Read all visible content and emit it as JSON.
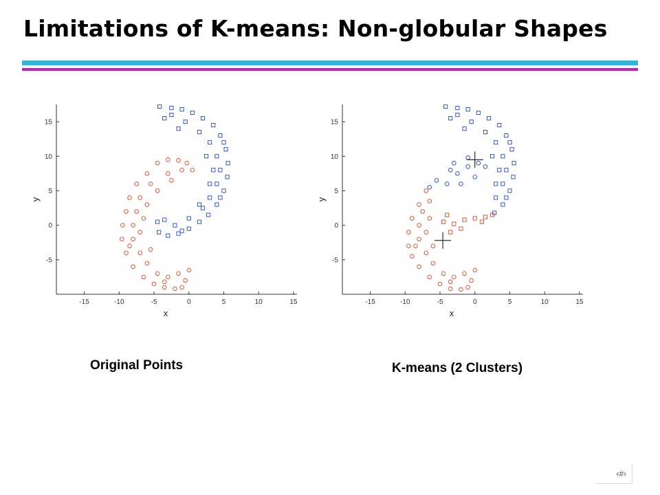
{
  "slide": {
    "title": "Limitations of K-means: Non-globular Shapes",
    "slide_number": "‹#›",
    "colors": {
      "rule_top": "#29b8e0",
      "rule_bottom": "#c81ec8",
      "cluster_red": "#e8401c",
      "cluster_blue": "#1a44d8"
    }
  },
  "captions": {
    "left": "Original Points",
    "right": "K-means (2 Clusters)"
  },
  "chart_data": [
    {
      "type": "scatter",
      "title": "",
      "xlabel": "x",
      "ylabel": "y",
      "xlim": [
        -19,
        15.5
      ],
      "ylim": [
        -10,
        17.5
      ],
      "xticks": [
        -15,
        -10,
        -5,
        0,
        5,
        10,
        15
      ],
      "yticks": [
        -5,
        0,
        5,
        10,
        15
      ],
      "grid": false,
      "series": [
        {
          "marker": "circle",
          "color": "#e8401c",
          "points": [
            [
              -3,
              9.5
            ],
            [
              -1.5,
              9.4
            ],
            [
              -0.3,
              9
            ],
            [
              0.5,
              8
            ],
            [
              -4.5,
              9
            ],
            [
              -6,
              7.5
            ],
            [
              -7.5,
              6
            ],
            [
              -8.5,
              4
            ],
            [
              -9,
              2
            ],
            [
              -9.5,
              0
            ],
            [
              -9.6,
              -2
            ],
            [
              -9,
              -4
            ],
            [
              -8,
              -6
            ],
            [
              -6.5,
              -7.5
            ],
            [
              -5,
              -8.5
            ],
            [
              -3.5,
              -9
            ],
            [
              -2,
              -9.2
            ],
            [
              -0.5,
              -8
            ],
            [
              0,
              -6.5
            ],
            [
              -3,
              7.5
            ],
            [
              -1,
              8
            ],
            [
              -5.5,
              6
            ],
            [
              -7,
              4
            ],
            [
              -7.5,
              2
            ],
            [
              -8,
              0
            ],
            [
              -8,
              -2
            ],
            [
              -7,
              -4
            ],
            [
              -6,
              -5.5
            ],
            [
              -4.5,
              -7
            ],
            [
              -3,
              -7.5
            ],
            [
              -1.5,
              -7
            ],
            [
              -6,
              3
            ],
            [
              -6.5,
              1
            ],
            [
              -7,
              -1
            ],
            [
              -4.5,
              5
            ],
            [
              -2.5,
              6.5
            ],
            [
              -8.5,
              -3
            ],
            [
              -5.5,
              -3.5
            ],
            [
              -3.5,
              -8.2
            ],
            [
              -1,
              -9
            ]
          ]
        },
        {
          "marker": "square",
          "color": "#1a44d8",
          "points": [
            [
              -4.2,
              17.2
            ],
            [
              -2.5,
              17
            ],
            [
              -1,
              16.8
            ],
            [
              0.5,
              16.3
            ],
            [
              2,
              15.5
            ],
            [
              3.5,
              14.5
            ],
            [
              4.5,
              13
            ],
            [
              5.3,
              11
            ],
            [
              5.6,
              9
            ],
            [
              5.5,
              7
            ],
            [
              5,
              5
            ],
            [
              4,
              3
            ],
            [
              2.8,
              1.5
            ],
            [
              1.5,
              0.5
            ],
            [
              0,
              -0.5
            ],
            [
              -1.5,
              -1.2
            ],
            [
              -3,
              -1.5
            ],
            [
              -4.3,
              -1
            ],
            [
              -4.5,
              0.5
            ],
            [
              -2.5,
              16
            ],
            [
              -0.5,
              15
            ],
            [
              1.5,
              13.5
            ],
            [
              3,
              12
            ],
            [
              4,
              10
            ],
            [
              4.5,
              8
            ],
            [
              4,
              6
            ],
            [
              3,
              4
            ],
            [
              2,
              2.5
            ],
            [
              0,
              1
            ],
            [
              -2,
              0
            ],
            [
              -3.5,
              0.8
            ],
            [
              -3.5,
              15.5
            ],
            [
              -1.5,
              14
            ],
            [
              3.5,
              8
            ],
            [
              3,
              6
            ],
            [
              1.5,
              3
            ],
            [
              -1,
              -0.8
            ],
            [
              5,
              12
            ],
            [
              2.5,
              10
            ],
            [
              4.5,
              4
            ]
          ]
        }
      ]
    },
    {
      "type": "scatter",
      "title": "",
      "xlabel": "x",
      "ylabel": "y",
      "xlim": [
        -19,
        15.5
      ],
      "ylim": [
        -10,
        17.5
      ],
      "xticks": [
        -15,
        -10,
        -5,
        0,
        5,
        10,
        15
      ],
      "yticks": [
        -5,
        0,
        5,
        10,
        15
      ],
      "grid": false,
      "series": [
        {
          "marker": "circle",
          "color": "#e8401c",
          "points": [
            [
              -7,
              5
            ],
            [
              -8,
              3
            ],
            [
              -9,
              1
            ],
            [
              -9.5,
              -1
            ],
            [
              -9.5,
              -3
            ],
            [
              -9,
              -4.5
            ],
            [
              -8,
              -6
            ],
            [
              -6.5,
              -7.5
            ],
            [
              -5,
              -8.5
            ],
            [
              -3.5,
              -9.2
            ],
            [
              -2,
              -9.3
            ],
            [
              -0.5,
              -8
            ],
            [
              0,
              -6.5
            ],
            [
              -7.5,
              2
            ],
            [
              -8,
              0
            ],
            [
              -8,
              -2
            ],
            [
              -7,
              -4
            ],
            [
              -6,
              -5.5
            ],
            [
              -4.5,
              -7
            ],
            [
              -3,
              -7.5
            ],
            [
              -1.5,
              -7
            ],
            [
              -6.5,
              3.5
            ],
            [
              -6.5,
              1
            ],
            [
              -7,
              -1
            ],
            [
              -8.5,
              -3
            ],
            [
              -3.5,
              -8.2
            ],
            [
              -1,
              -9
            ],
            [
              -6,
              -3
            ]
          ]
        },
        {
          "marker": "square",
          "color": "#e8401c",
          "points": [
            [
              -4.5,
              0.5
            ],
            [
              -3,
              0.2
            ],
            [
              -1.5,
              0.8
            ],
            [
              0,
              1
            ],
            [
              1.5,
              1.2
            ],
            [
              2.5,
              1.5
            ],
            [
              -3.5,
              -1
            ],
            [
              -2,
              -0.5
            ],
            [
              -4,
              1.5
            ],
            [
              1,
              0.5
            ]
          ]
        },
        {
          "marker": "circle",
          "color": "#1a44d8",
          "points": [
            [
              -4,
              6
            ],
            [
              -2.5,
              7.5
            ],
            [
              -1,
              8.5
            ],
            [
              0.5,
              9
            ],
            [
              1.5,
              8.5
            ],
            [
              -3,
              9
            ],
            [
              -5.5,
              6.5
            ],
            [
              -2,
              6
            ],
            [
              0,
              7
            ],
            [
              -1,
              9.8
            ],
            [
              -6.5,
              5.5
            ],
            [
              -3.5,
              8
            ]
          ]
        },
        {
          "marker": "square",
          "color": "#1a44d8",
          "points": [
            [
              -4.2,
              17.2
            ],
            [
              -2.5,
              17
            ],
            [
              -1,
              16.8
            ],
            [
              0.5,
              16.3
            ],
            [
              2,
              15.5
            ],
            [
              3.5,
              14.5
            ],
            [
              4.5,
              13
            ],
            [
              5.3,
              11
            ],
            [
              5.6,
              9
            ],
            [
              5.5,
              7
            ],
            [
              5,
              5
            ],
            [
              4,
              3
            ],
            [
              2.8,
              1.8
            ],
            [
              -2.5,
              16
            ],
            [
              -0.5,
              15
            ],
            [
              1.5,
              13.5
            ],
            [
              3,
              12
            ],
            [
              4,
              10
            ],
            [
              4.5,
              8
            ],
            [
              4,
              6
            ],
            [
              3,
              4
            ],
            [
              -3.5,
              15.5
            ],
            [
              -1.5,
              14
            ],
            [
              3.5,
              8
            ],
            [
              3,
              6
            ],
            [
              5,
              12
            ],
            [
              2.5,
              10
            ],
            [
              4.5,
              4
            ]
          ]
        },
        {
          "marker": "cross",
          "color": "#000000",
          "name": "",
          "points": [
            [
              0,
              9.5
            ],
            [
              -4.6,
              -2.2
            ]
          ]
        }
      ]
    }
  ]
}
